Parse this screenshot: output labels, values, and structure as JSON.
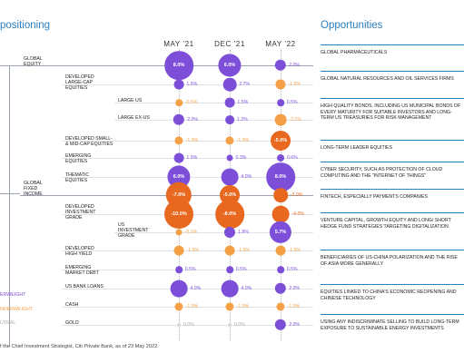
{
  "left_title": "positioning",
  "right_title": "Opportunities",
  "columns": [
    "MAY '21",
    "DEC '21",
    "MAY '22"
  ],
  "colors": {
    "overweight": "#7d4fd9",
    "underweight": "#f5a047",
    "neutral": "#d9d9d9",
    "accent": "#2a7fbf",
    "strong_underweight": "#e8681f"
  },
  "rows": [
    {
      "label": "GLOBAL\nEQUITY",
      "values": [
        "8.0%",
        "6.0%",
        "2.0%"
      ]
    },
    {
      "label": "DEVELOPED\nLARGE-CAP\nEQUITIES",
      "values": [
        "1.5%",
        "2.7%",
        "-1.6%"
      ]
    },
    {
      "label": "LARGE US",
      "values": [
        "-0.5%",
        "1.5%",
        "0.5%"
      ]
    },
    {
      "label": "LARGE EX-US",
      "values": [
        "2.0%",
        "1.2%",
        "-2.1%"
      ]
    },
    {
      "label": "DEVELOPED SMALL-\n& MID-CAP EQUITIES",
      "values": [
        "-1.0%",
        "-1.0%",
        "-5.0%"
      ]
    },
    {
      "label": "EMERGING\nEQUITIES",
      "values": [
        "1.5%",
        "0.3%",
        "0.6%"
      ]
    },
    {
      "label": "THEMATIC\nEQUITIES",
      "values": [
        "6.0%",
        "4.0%",
        "8.0%"
      ]
    },
    {
      "label": "GLOBAL\nFIXED\nINCOME",
      "values": [
        "-7.0%",
        "-5.0%",
        "-3.0%"
      ]
    },
    {
      "label": "DEVELOPED\nINVESTMENT\nGRADE",
      "values": [
        "-10.0%",
        "-8.0%",
        "-4.0%"
      ]
    },
    {
      "label": "US\nINVESTMENT\nGRADE",
      "values": [
        "-0.1%",
        "1.9%",
        "5.7%"
      ]
    },
    {
      "label": "DEVELOPED\nHIGH YIELD",
      "values": [
        "-1.5%",
        "-1.5%",
        "-1.5%"
      ]
    },
    {
      "label": "EMERGING\nMARKET DEBT",
      "values": [
        "0.5%",
        "0.5%",
        "0.5%"
      ]
    },
    {
      "label": "US BANK LOANS",
      "values": [
        "4.0%",
        "4.0%",
        "2.0%"
      ]
    },
    {
      "label": "CASH",
      "values": [
        "-1.0%",
        "-1.0%",
        "-1.0%"
      ]
    },
    {
      "label": "GOLD",
      "values": [
        "0.0%",
        "0.0%",
        "2.0%"
      ]
    }
  ],
  "legend": {
    "overweight": "ERWEIGHT",
    "underweight": "NDERWEIGHT",
    "neutral": "UTRAL"
  },
  "opportunities": [
    "GLOBAL PHARMACEUTICALS",
    "GLOBAL NATURAL RESOURCES AND OIL SERVICES FIRMS",
    "HIGH QUALITY BONDS, INCLUDING US MUNICIPAL BONDS OF EVERY MATURITY FOR SUITABLE INVESTORS AND LONG-TERM US TREASURIES FOR RISK MANAGEMENT",
    "LONG-TERM LEADER EQUITIES",
    "CYBER SECURITY, SUCH AS PROTECTION OF CLOUD COMPUTING AND THE \"INTERNET OF THINGS\"",
    "FINTECH, ESPECIALLY PAYMENTS COMPANIES",
    "VENTURE CAPITAL, GROWTH EQUITY AND LONG/ SHORT HEDGE FUND STRATEGIES TARGETING DIGITALIZATION",
    "BENEFICIARIES OF US-CHINA POLARIZATION AND THE RISE OF ASIA MORE GENERALLY",
    "EQUITIES LINKED TO CHINA'S ECONOMIC REOPENING AND CHINESE TECHNOLOGY",
    "USING ANY INDISCRIMINATE SELLING TO BUILD LONG-TERM EXPOSURE TO SUSTAINABLE ENERGY INVESTMENTS"
  ],
  "footnote": "f the Chief Investment Strategist, Citi Private Bank, as of 23 May 2022."
}
